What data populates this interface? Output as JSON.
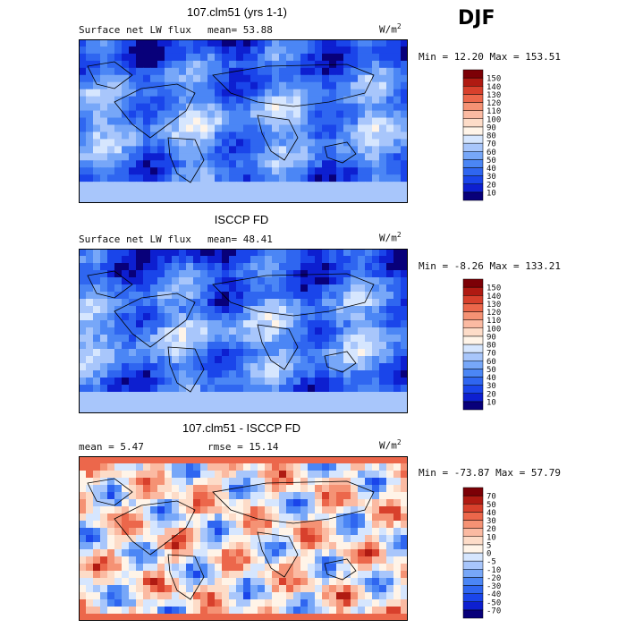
{
  "season": "DJF",
  "chart_data": [
    {
      "type": "heatmap",
      "title": "107.clm51 (yrs 1-1)",
      "variable": "Surface net LW flux",
      "stat_left": "mean=  53.88",
      "stat_right": "",
      "units": "W/m",
      "units_sup": "2",
      "minmax": "Min =  12.20 Max = 153.51",
      "colorbar": {
        "levels": [
          "10",
          "20",
          "30",
          "40",
          "50",
          "60",
          "70",
          "80",
          "90",
          "100",
          "110",
          "120",
          "130",
          "140",
          "150"
        ],
        "colors": [
          "#08007a",
          "#0d1fd0",
          "#1a45ea",
          "#2f66f0",
          "#4b86f5",
          "#77a7f8",
          "#a8c6fb",
          "#d6e6fe",
          "#fff4e8",
          "#fddcc8",
          "#fbbaa2",
          "#f59274",
          "#ec674b",
          "#d8402c",
          "#b01a12",
          "#7c0006"
        ]
      }
    },
    {
      "type": "heatmap",
      "title": "ISCCP FD",
      "variable": "Surface net LW flux",
      "stat_left": "mean=  48.41",
      "stat_right": "",
      "units": "W/m",
      "units_sup": "2",
      "minmax": "Min =  -8.26 Max = 133.21",
      "colorbar": {
        "levels": [
          "10",
          "20",
          "30",
          "40",
          "50",
          "60",
          "70",
          "80",
          "90",
          "100",
          "110",
          "120",
          "130",
          "140",
          "150"
        ],
        "colors": [
          "#08007a",
          "#0d1fd0",
          "#1a45ea",
          "#2f66f0",
          "#4b86f5",
          "#77a7f8",
          "#a8c6fb",
          "#d6e6fe",
          "#fff4e8",
          "#fddcc8",
          "#fbbaa2",
          "#f59274",
          "#ec674b",
          "#d8402c",
          "#b01a12",
          "#7c0006"
        ]
      }
    },
    {
      "type": "heatmap",
      "title": "107.clm51 - ISCCP FD",
      "variable": "",
      "stat_left": "mean =   5.47",
      "stat_right": "rmse =  15.14",
      "units": "W/m",
      "units_sup": "2",
      "minmax": "Min = -73.87 Max =  57.79",
      "colorbar": {
        "levels": [
          "-70",
          "-50",
          "-40",
          "-30",
          "-20",
          "-10",
          "-5",
          "0",
          "5",
          "10",
          "20",
          "30",
          "40",
          "50",
          "70"
        ],
        "colors": [
          "#08007a",
          "#0d1fd0",
          "#1a45ea",
          "#2f66f0",
          "#4b86f5",
          "#77a7f8",
          "#a8c6fb",
          "#d6e6fe",
          "#fff4e8",
          "#fddcc8",
          "#fbbaa2",
          "#f59274",
          "#ec674b",
          "#d8402c",
          "#b01a12",
          "#7c0006"
        ]
      }
    }
  ]
}
